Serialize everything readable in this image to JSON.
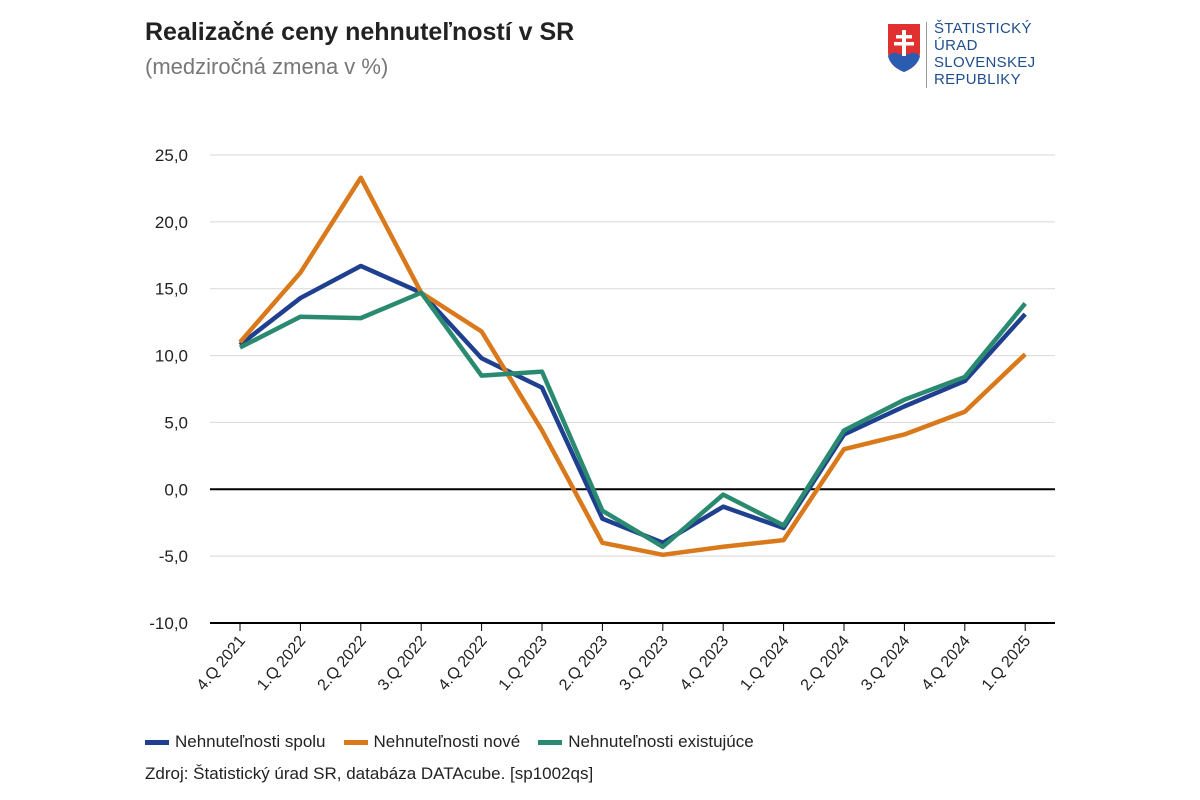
{
  "title": "Realizačné ceny nehnuteľností v SR",
  "subtitle": "(medziročná zmena v %)",
  "logo": {
    "text_lines": [
      "ŠTATISTICKÝ",
      "ÚRAD",
      "SLOVENSKEJ",
      "REPUBLIKY"
    ],
    "color": "#1f4e8c"
  },
  "source": "Zdroj: Štatistický úrad SR, databáza DATAcube. [sp1002qs]",
  "chart_data": {
    "type": "line",
    "categories": [
      "4.Q 2021",
      "1.Q 2022",
      "2.Q 2022",
      "3.Q 2022",
      "4.Q 2022",
      "1.Q 2023",
      "2.Q 2023",
      "3.Q 2023",
      "4.Q 2023",
      "1.Q 2024",
      "2.Q 2024",
      "3.Q 2024",
      "4.Q 2024",
      "1.Q 2025"
    ],
    "yticks": [
      "25,0",
      "20,0",
      "15,0",
      "10,0",
      "5,0",
      "0,0",
      "-5,0",
      "-10,0"
    ],
    "ylim": [
      -10,
      25
    ],
    "grid": true,
    "legend": "bottom",
    "series": [
      {
        "name": "Nehnuteľnosti spolu",
        "color": "#1f3f8f",
        "values": [
          10.8,
          14.3,
          16.7,
          14.7,
          9.8,
          7.6,
          -2.2,
          -4.0,
          -1.3,
          -2.9,
          4.1,
          6.2,
          8.1,
          13.1
        ]
      },
      {
        "name": "Nehnuteľnosti nové",
        "color": "#d9791b",
        "values": [
          11.0,
          16.2,
          23.3,
          14.7,
          11.8,
          4.4,
          -4.0,
          -4.9,
          -4.3,
          -3.8,
          3.0,
          4.1,
          5.8,
          10.1
        ]
      },
      {
        "name": "Nehnuteľnosti existujúce",
        "color": "#2a8a70",
        "values": [
          10.6,
          12.9,
          12.8,
          14.7,
          8.5,
          8.8,
          -1.6,
          -4.3,
          -0.4,
          -2.7,
          4.4,
          6.7,
          8.4,
          13.9
        ]
      }
    ]
  }
}
